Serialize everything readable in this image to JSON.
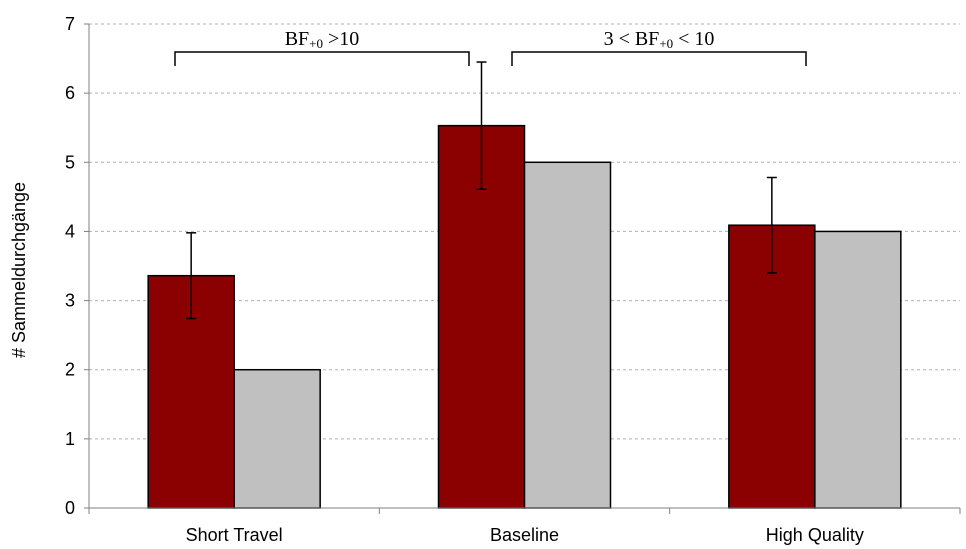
{
  "chart_data": {
    "type": "bar",
    "ylabel": "# Sammeldurchgänge",
    "ylim": [
      0,
      7
    ],
    "yticks": [
      0,
      1,
      2,
      3,
      4,
      5,
      6,
      7
    ],
    "categories": [
      "Short Travel",
      "Baseline",
      "High Quality"
    ],
    "series": [
      {
        "values": [
          3.36,
          5.53,
          4.09
        ],
        "error": [
          0.62,
          0.92,
          0.69
        ],
        "color": "#8b0000"
      },
      {
        "values": [
          2,
          5,
          4
        ],
        "color": "#c0c0c0"
      }
    ],
    "grid": "horizontal dashed",
    "annotations": [
      {
        "pre": "BF",
        "sub": "+0",
        "post": " >10",
        "spans": [
          "Short Travel",
          "Baseline"
        ]
      },
      {
        "pre": "3 < BF",
        "sub": "+0",
        "post": " < 10",
        "spans": [
          "Baseline",
          "High Quality"
        ]
      }
    ]
  }
}
